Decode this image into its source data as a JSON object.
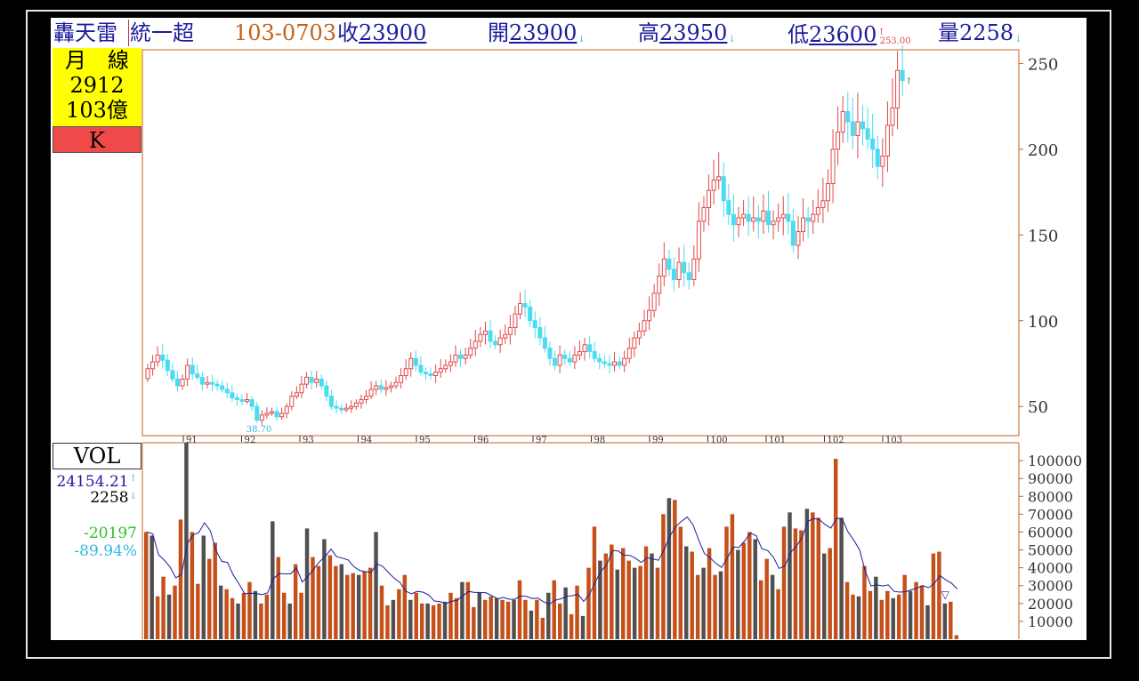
{
  "header": {
    "name": "轟天雷",
    "sub": "統一超",
    "date": "103-0703",
    "close_label": "收",
    "close": "23900",
    "open_label": "開",
    "open": "23900",
    "high_label": "高",
    "high": "23950",
    "low_label": "低",
    "low": "23600",
    "vol_label": "量",
    "vol": "2258"
  },
  "info": {
    "line1": "月　線",
    "line2": "2912",
    "line3": "103億",
    "k_label": "K"
  },
  "vol_panel": {
    "label": "VOL",
    "ma_value": "24154.21",
    "cur_value": "2258",
    "diff": "-20197",
    "pct": "-89.94%"
  },
  "colors": {
    "up": "#e04a4a",
    "down": "#4adcf0",
    "vol_up": "#c4501a",
    "vol_down": "#505050",
    "ma": "#1c1c9e"
  },
  "chart_data": [
    {
      "type": "candlestick",
      "title": "",
      "x_ticks": [
        "91",
        "92",
        "93",
        "94",
        "95",
        "96",
        "97",
        "98",
        "99",
        "100",
        "101",
        "102",
        "103"
      ],
      "y_ticks": [
        50,
        100,
        150,
        200,
        250
      ],
      "ylim": [
        33,
        258
      ],
      "max_label": "253.00",
      "min_label": "38.70",
      "close": [
        72,
        76,
        80,
        77,
        71,
        66,
        62,
        66,
        74,
        69,
        67,
        63,
        64,
        63,
        62,
        60,
        58,
        55,
        54,
        53,
        54,
        50,
        42,
        45,
        46,
        47,
        44,
        46,
        50,
        56,
        58,
        63,
        67,
        64,
        66,
        62,
        56,
        50,
        49,
        48,
        49,
        50,
        52,
        54,
        56,
        60,
        62,
        60,
        61,
        62,
        64,
        68,
        72,
        78,
        74,
        70,
        69,
        68,
        70,
        72,
        74,
        76,
        80,
        78,
        80,
        84,
        88,
        92,
        94,
        88,
        86,
        90,
        92,
        96,
        104,
        110,
        108,
        100,
        96,
        90,
        84,
        78,
        74,
        80,
        78,
        76,
        80,
        82,
        86,
        82,
        78,
        76,
        75,
        74,
        76,
        74,
        78,
        84,
        90,
        94,
        100,
        106,
        116,
        126,
        136,
        130,
        124,
        134,
        128,
        124,
        136,
        158,
        166,
        176,
        182,
        184,
        170,
        162,
        156,
        160,
        162,
        158,
        160,
        158,
        164,
        156,
        158,
        160,
        162,
        158,
        144,
        152,
        160,
        158,
        162,
        166,
        170,
        180,
        200,
        210,
        222,
        216,
        208,
        216,
        212,
        206,
        200,
        190,
        196,
        214,
        224,
        246,
        240
      ],
      "highs_note": "high≈close+~8% ,low≈close-~6%",
      "period": "monthly"
    },
    {
      "type": "bar",
      "title": "VOL",
      "y_ticks": [
        10000,
        20000,
        30000,
        40000,
        50000,
        60000,
        70000,
        80000,
        90000,
        100000
      ],
      "ylim": [
        0,
        108000
      ],
      "values": [
        60000,
        58000,
        24000,
        35000,
        25000,
        30000,
        67000,
        110000,
        60000,
        31000,
        58000,
        45000,
        54000,
        30000,
        28000,
        23000,
        20000,
        26000,
        32000,
        27000,
        20000,
        25000,
        66000,
        46000,
        26000,
        20000,
        42000,
        26000,
        62000,
        46000,
        41000,
        56000,
        47000,
        41000,
        42000,
        36000,
        37000,
        36000,
        38000,
        40000,
        60000,
        30000,
        19000,
        22000,
        28000,
        36000,
        22000,
        26000,
        20000,
        20000,
        19000,
        20000,
        21000,
        26000,
        23000,
        32000,
        32000,
        18000,
        26000,
        22000,
        24000,
        23000,
        22000,
        21000,
        22000,
        33000,
        22000,
        16000,
        22000,
        12000,
        26000,
        33000,
        20000,
        29000,
        14000,
        30000,
        13000,
        40000,
        63000,
        44000,
        48000,
        53000,
        39000,
        51000,
        44000,
        40000,
        41000,
        52000,
        48000,
        40000,
        70000,
        79000,
        78000,
        63000,
        52000,
        49000,
        36000,
        40000,
        51000,
        36000,
        38000,
        63000,
        70000,
        50000,
        54000,
        60000,
        56000,
        33000,
        45000,
        36000,
        28000,
        63000,
        71000,
        62000,
        61000,
        73000,
        71000,
        68000,
        48000,
        51000,
        101000,
        68000,
        32000,
        25000,
        24000,
        41000,
        27000,
        35000,
        22000,
        27000,
        23000,
        25000,
        36000,
        27000,
        32000,
        30000,
        19000,
        48000,
        49000,
        20000,
        21000,
        2258
      ]
    }
  ]
}
